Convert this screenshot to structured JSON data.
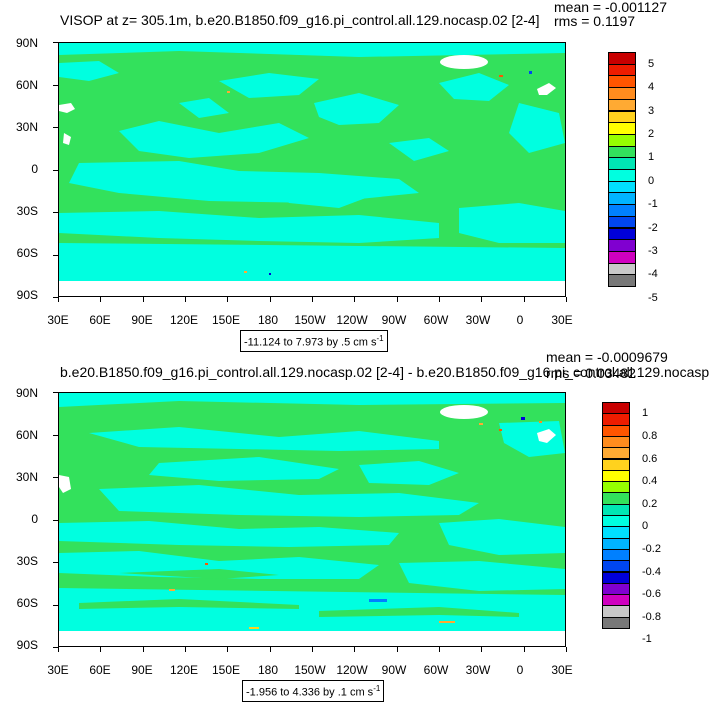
{
  "panel1": {
    "title": "VISOP at z= 305.1m, b.e20.B1850.f09_g16.pi_control.all.129.nocasp.02 [2-4]",
    "mean": "mean = -0.001127",
    "rms": "rms = 0.1197",
    "range": "-11.124 to 7.973 by .5 cm s",
    "range_sup": "-1",
    "legend_labels": [
      "5",
      "4",
      "3",
      "2",
      "1",
      "0",
      "-1",
      "-2",
      "-3",
      "-4",
      "-5"
    ],
    "legend_colors": [
      "#c80000",
      "#ee1c00",
      "#ff5500",
      "#ff8c1e",
      "#ffaa33",
      "#ffd21e",
      "#ffff00",
      "#96ff00",
      "#33e15c",
      "#00e6b4",
      "#00ffe0",
      "#00e0ff",
      "#00b4ff",
      "#0080ff",
      "#0046f0",
      "#0000d8",
      "#8000d0",
      "#d000c0",
      "#c8c8c8",
      "#787878"
    ]
  },
  "panel2": {
    "title": "b.e20.B1850.f09_g16.pi_control.all.129.nocasp.02 [2-4] - b.e20.B1850.f09_g16.pi_control.all.129.nocasp",
    "mean": "mean = -0.0009679",
    "rms": "rms = 0.03482",
    "range": "-1.956 to 4.336 by .1 cm s",
    "range_sup": "-1",
    "legend_labels": [
      "1",
      "0.8",
      "0.6",
      "0.4",
      "0.2",
      "0",
      "-0.2",
      "-0.4",
      "-0.6",
      "-0.8",
      "-1"
    ],
    "legend_colors": [
      "#c80000",
      "#ee1c00",
      "#ff5500",
      "#ff8c1e",
      "#ffaa33",
      "#ffd21e",
      "#ffff00",
      "#96ff00",
      "#33e15c",
      "#00e6b4",
      "#00ffe0",
      "#00e0ff",
      "#00b4ff",
      "#0080ff",
      "#0046f0",
      "#0000d8",
      "#8000d0",
      "#d000c0",
      "#c8c8c8",
      "#787878"
    ]
  },
  "axes": {
    "y_labels": [
      "90N",
      "60N",
      "30N",
      "0",
      "30S",
      "60S",
      "90S"
    ],
    "x_labels": [
      "30E",
      "60E",
      "90E",
      "120E",
      "150E",
      "180",
      "150W",
      "120W",
      "90W",
      "60W",
      "30W",
      "0",
      "30E"
    ]
  },
  "colors": {
    "ocean_zero": "#33e15c",
    "ocean_neg": "#00ffe0",
    "land": "#ffffff"
  }
}
